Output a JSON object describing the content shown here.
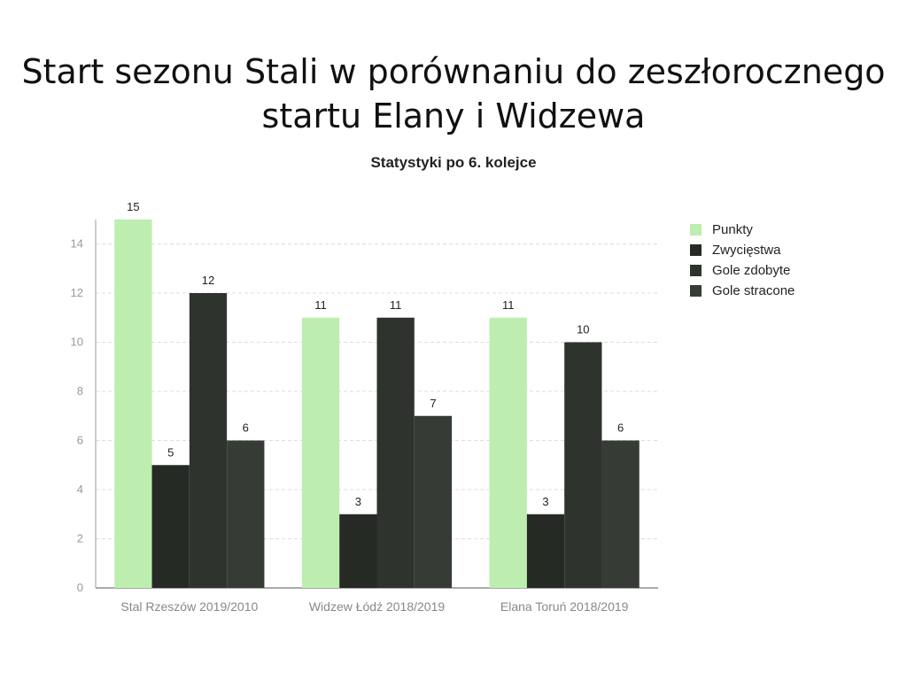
{
  "title_lines": [
    "Start sezonu Stali w porównaniu do zeszłorocznego",
    "startu Elany i Widzewa"
  ],
  "subtitle": "Statystyki po 6. kolejce",
  "chart_data": {
    "type": "bar",
    "title": "Start sezonu Stali w porównaniu do zeszłorocznego startu Elany i Widzewa",
    "subtitle": "Statystyki po 6. kolejce",
    "categories": [
      "Stal Rzeszów 2019/2010",
      "Widzew Łódź 2018/2019",
      "Elana Toruń 2018/2019"
    ],
    "series": [
      {
        "name": "Punkty",
        "values": [
          15,
          11,
          11
        ],
        "color": "#bdeeb0"
      },
      {
        "name": "Zwycięstwa",
        "values": [
          5,
          3,
          3
        ],
        "color": "#262a25"
      },
      {
        "name": "Gole zdobyte",
        "values": [
          12,
          11,
          10
        ],
        "color": "#2f332e"
      },
      {
        "name": "Gole stracone",
        "values": [
          6,
          7,
          6
        ],
        "color": "#363b35"
      }
    ],
    "ylim": [
      0,
      15
    ],
    "yticks": [
      0,
      2,
      4,
      6,
      8,
      10,
      12,
      14
    ],
    "grid": true,
    "legend": "top-right",
    "data_labels": true
  }
}
